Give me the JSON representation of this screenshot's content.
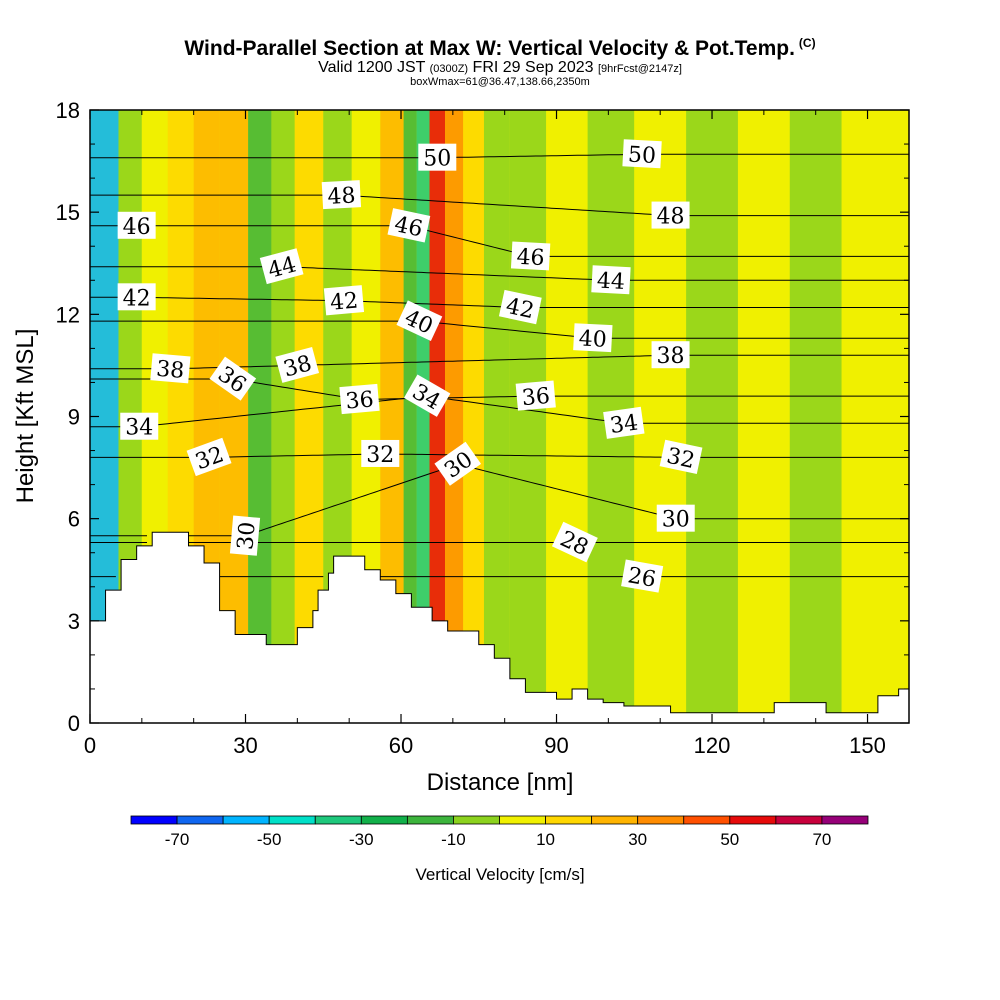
{
  "chart_data": {
    "type": "heatmap",
    "title": "Wind-Parallel Section at Max W: Vertical Velocity & Pot.Temp.",
    "title_mark": "(C)",
    "subtitle_parts": [
      "Valid 1200 JST ",
      "(0300Z)",
      " FRI 29 Sep 2023 ",
      "[9hrFcst@2147z]"
    ],
    "subtitle2": "boxWmax=61@36.47,138.66,2350m",
    "xlabel": "Distance [nm]",
    "ylabel": "Height [Kft MSL]",
    "xlim": [
      0,
      158
    ],
    "ylim": [
      0,
      18
    ],
    "x_ticks": [
      "0",
      "30",
      "60",
      "90",
      "120",
      "150"
    ],
    "y_ticks": [
      "0",
      "3",
      "6",
      "9",
      "12",
      "15",
      "18"
    ],
    "colorbar": {
      "label": "Vertical Velocity [cm/s]",
      "tick_labels": [
        "-70",
        "-50",
        "-30",
        "-10",
        "10",
        "30",
        "50",
        "70"
      ],
      "bounds": [
        -80,
        -70,
        -60,
        -50,
        -40,
        -30,
        -20,
        -10,
        0,
        10,
        20,
        30,
        40,
        50,
        60,
        70,
        80
      ],
      "colors": [
        "#0000ff",
        "#0f66f0",
        "#00b4ff",
        "#00e0c8",
        "#1ec87c",
        "#12b04a",
        "#3cb43c",
        "#8cd21e",
        "#f0f000",
        "#ffd700",
        "#ffb400",
        "#ff8c00",
        "#ff5000",
        "#e60a0a",
        "#c8003c",
        "#960078"
      ]
    },
    "background_w_cms": 0,
    "vertical_velocity_bands": [
      {
        "x": 3,
        "w": -55,
        "note": "downdraft column"
      },
      {
        "x": 8,
        "w": -10
      },
      {
        "x": 12,
        "w": 5
      },
      {
        "x": 18,
        "w": 15
      },
      {
        "x": 22,
        "w": 20
      },
      {
        "x": 28,
        "w": 25
      },
      {
        "x": 33,
        "w": -15
      },
      {
        "x": 37,
        "w": -5
      },
      {
        "x": 42,
        "w": 10
      },
      {
        "x": 48,
        "w": -5
      },
      {
        "x": 53,
        "w": 5
      },
      {
        "x": 59,
        "w": 20
      },
      {
        "x": 62,
        "w": -20
      },
      {
        "x": 64,
        "w": -40
      },
      {
        "x": 67,
        "w": 55
      },
      {
        "x": 70,
        "w": 30
      },
      {
        "x": 74,
        "w": 15
      },
      {
        "x": 78,
        "w": -10
      },
      {
        "x": 84,
        "w": -5
      },
      {
        "x": 92,
        "w": 5
      },
      {
        "x": 100,
        "w": -10
      },
      {
        "x": 110,
        "w": 5
      },
      {
        "x": 120,
        "w": -10
      },
      {
        "x": 130,
        "w": 5
      },
      {
        "x": 140,
        "w": -5
      },
      {
        "x": 150,
        "w": 5
      }
    ],
    "terrain": [
      {
        "x": 0,
        "h": 3.0
      },
      {
        "x": 3,
        "h": 3.0
      },
      {
        "x": 3,
        "h": 3.9
      },
      {
        "x": 6,
        "h": 3.9
      },
      {
        "x": 6,
        "h": 4.8
      },
      {
        "x": 9,
        "h": 4.8
      },
      {
        "x": 9,
        "h": 5.2
      },
      {
        "x": 12,
        "h": 5.2
      },
      {
        "x": 12,
        "h": 5.6
      },
      {
        "x": 19,
        "h": 5.6
      },
      {
        "x": 19,
        "h": 5.2
      },
      {
        "x": 22,
        "h": 5.2
      },
      {
        "x": 22,
        "h": 4.7
      },
      {
        "x": 25,
        "h": 4.7
      },
      {
        "x": 25,
        "h": 3.3
      },
      {
        "x": 28,
        "h": 3.3
      },
      {
        "x": 28,
        "h": 2.6
      },
      {
        "x": 34,
        "h": 2.6
      },
      {
        "x": 34,
        "h": 2.3
      },
      {
        "x": 40,
        "h": 2.3
      },
      {
        "x": 40,
        "h": 2.8
      },
      {
        "x": 43,
        "h": 2.8
      },
      {
        "x": 43,
        "h": 3.3
      },
      {
        "x": 44,
        "h": 3.3
      },
      {
        "x": 44,
        "h": 3.9
      },
      {
        "x": 46,
        "h": 3.9
      },
      {
        "x": 46,
        "h": 4.4
      },
      {
        "x": 47,
        "h": 4.4
      },
      {
        "x": 47,
        "h": 4.9
      },
      {
        "x": 53,
        "h": 4.9
      },
      {
        "x": 53,
        "h": 4.5
      },
      {
        "x": 56,
        "h": 4.5
      },
      {
        "x": 56,
        "h": 4.2
      },
      {
        "x": 59,
        "h": 4.2
      },
      {
        "x": 59,
        "h": 3.8
      },
      {
        "x": 62,
        "h": 3.8
      },
      {
        "x": 62,
        "h": 3.4
      },
      {
        "x": 66,
        "h": 3.4
      },
      {
        "x": 66,
        "h": 3.0
      },
      {
        "x": 69,
        "h": 3.0
      },
      {
        "x": 69,
        "h": 2.7
      },
      {
        "x": 75,
        "h": 2.7
      },
      {
        "x": 75,
        "h": 2.3
      },
      {
        "x": 78,
        "h": 2.3
      },
      {
        "x": 78,
        "h": 1.9
      },
      {
        "x": 81,
        "h": 1.9
      },
      {
        "x": 81,
        "h": 1.3
      },
      {
        "x": 84,
        "h": 1.3
      },
      {
        "x": 84,
        "h": 0.9
      },
      {
        "x": 90,
        "h": 0.9
      },
      {
        "x": 90,
        "h": 0.7
      },
      {
        "x": 93,
        "h": 0.7
      },
      {
        "x": 93,
        "h": 1.0
      },
      {
        "x": 96,
        "h": 1.0
      },
      {
        "x": 96,
        "h": 0.7
      },
      {
        "x": 99,
        "h": 0.7
      },
      {
        "x": 99,
        "h": 0.6
      },
      {
        "x": 103,
        "h": 0.6
      },
      {
        "x": 103,
        "h": 0.5
      },
      {
        "x": 112,
        "h": 0.5
      },
      {
        "x": 112,
        "h": 0.3
      },
      {
        "x": 132,
        "h": 0.3
      },
      {
        "x": 132,
        "h": 0.6
      },
      {
        "x": 142,
        "h": 0.6
      },
      {
        "x": 142,
        "h": 0.3
      },
      {
        "x": 152,
        "h": 0.3
      },
      {
        "x": 152,
        "h": 0.8
      },
      {
        "x": 156,
        "h": 0.8
      },
      {
        "x": 156,
        "h": 1.0
      },
      {
        "x": 158,
        "h": 1.0
      }
    ],
    "potential_temperature_labels": [
      {
        "text": "50",
        "x": 67,
        "y": 16.6,
        "rot": 0
      },
      {
        "text": "50",
        "x": 106.5,
        "y": 16.7,
        "rot": 3
      },
      {
        "text": "48",
        "x": 48.5,
        "y": 15.5,
        "rot": -3
      },
      {
        "text": "48",
        "x": 112,
        "y": 14.9,
        "rot": 0
      },
      {
        "text": "46",
        "x": 9,
        "y": 14.6,
        "rot": 0
      },
      {
        "text": "46",
        "x": 61.5,
        "y": 14.6,
        "rot": 12
      },
      {
        "text": "46",
        "x": 85,
        "y": 13.7,
        "rot": 3
      },
      {
        "text": "44",
        "x": 37,
        "y": 13.4,
        "rot": -15
      },
      {
        "text": "44",
        "x": 100.5,
        "y": 13.0,
        "rot": 3
      },
      {
        "text": "42",
        "x": 9,
        "y": 12.5,
        "rot": 0
      },
      {
        "text": "42",
        "x": 49,
        "y": 12.4,
        "rot": -5
      },
      {
        "text": "42",
        "x": 83,
        "y": 12.2,
        "rot": 12
      },
      {
        "text": "40",
        "x": 63.5,
        "y": 11.8,
        "rot": 25
      },
      {
        "text": "40",
        "x": 97,
        "y": 11.3,
        "rot": 3
      },
      {
        "text": "38",
        "x": 15.5,
        "y": 10.4,
        "rot": 5
      },
      {
        "text": "38",
        "x": 40,
        "y": 10.5,
        "rot": -15
      },
      {
        "text": "38",
        "x": 112,
        "y": 10.8,
        "rot": 0
      },
      {
        "text": "36",
        "x": 27.5,
        "y": 10.1,
        "rot": 35
      },
      {
        "text": "36",
        "x": 52,
        "y": 9.5,
        "rot": -5
      },
      {
        "text": "36",
        "x": 86,
        "y": 9.6,
        "rot": -5
      },
      {
        "text": "34",
        "x": 9.5,
        "y": 8.7,
        "rot": 0
      },
      {
        "text": "34",
        "x": 65,
        "y": 9.6,
        "rot": 30
      },
      {
        "text": "34",
        "x": 103,
        "y": 8.8,
        "rot": -8
      },
      {
        "text": "32",
        "x": 23,
        "y": 7.8,
        "rot": -20
      },
      {
        "text": "32",
        "x": 56,
        "y": 7.9,
        "rot": 0
      },
      {
        "text": "32",
        "x": 114,
        "y": 7.8,
        "rot": 12
      },
      {
        "text": "30",
        "x": 30,
        "y": 5.5,
        "rot": -85
      },
      {
        "text": "30",
        "x": 71,
        "y": 7.6,
        "rot": -35
      },
      {
        "text": "30",
        "x": 113,
        "y": 6.0,
        "rot": 0
      },
      {
        "text": "28",
        "x": 93.5,
        "y": 5.3,
        "rot": 25
      },
      {
        "text": "26",
        "x": 106.5,
        "y": 4.3,
        "rot": 10
      }
    ]
  }
}
